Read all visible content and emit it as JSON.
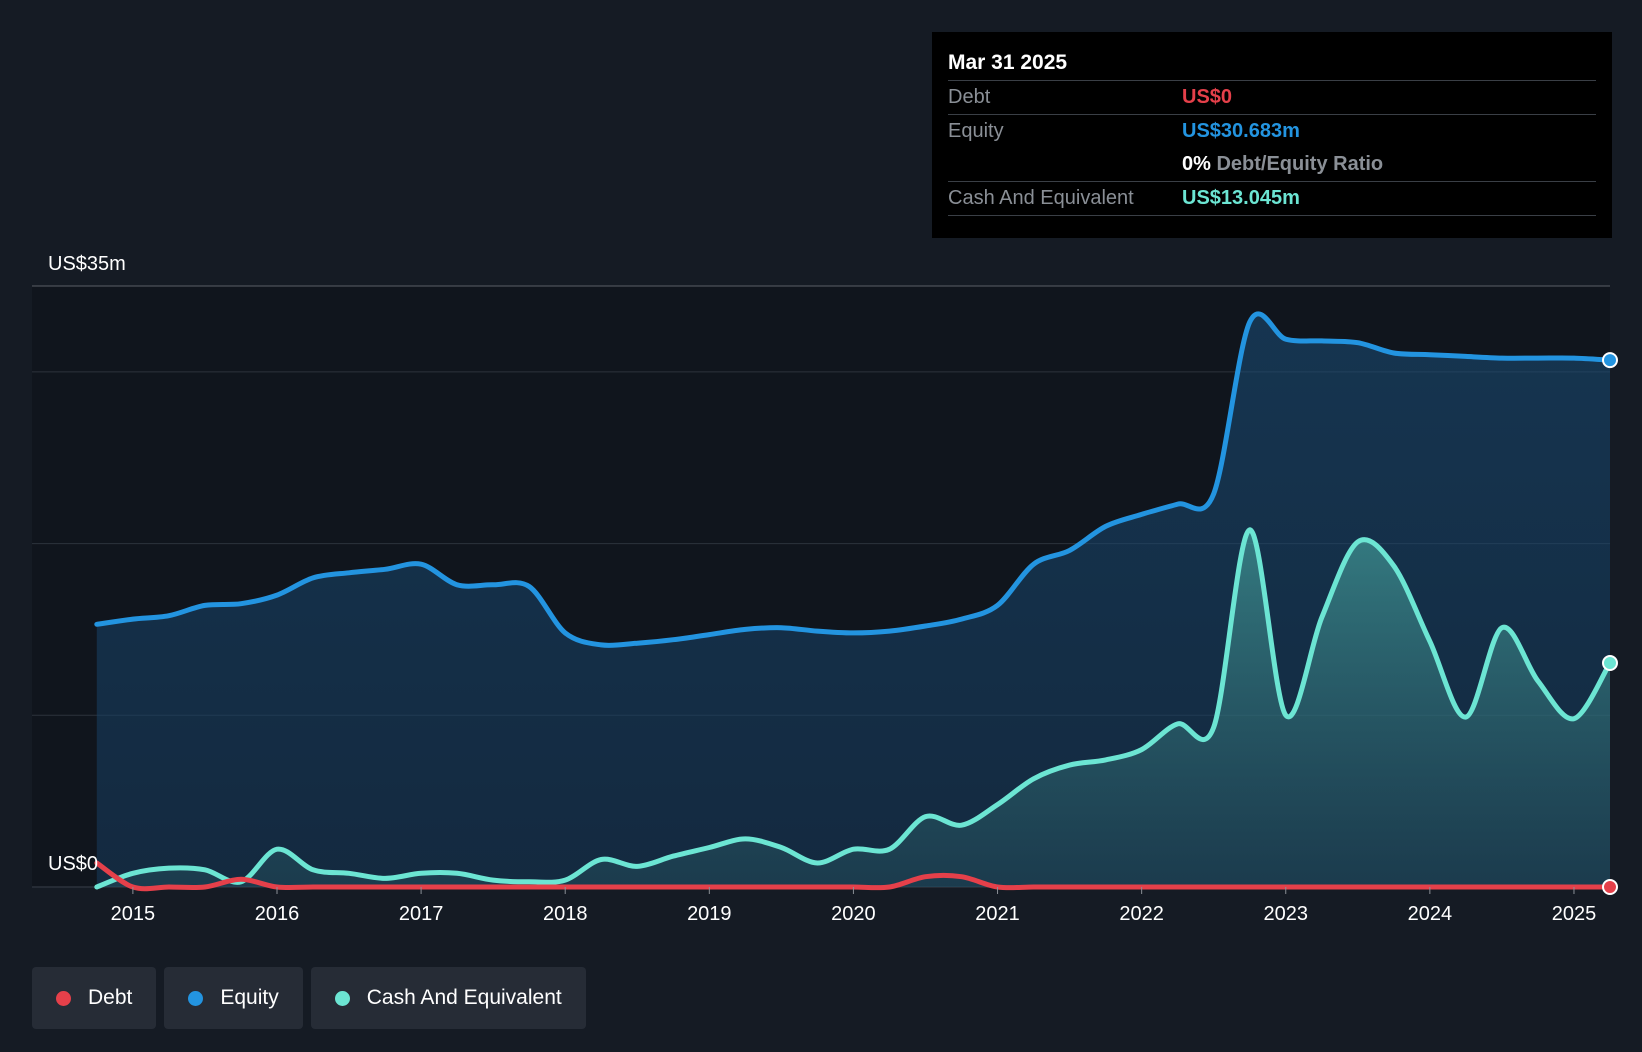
{
  "colors": {
    "debt": "#e5404a",
    "equity": "#2394e0",
    "cash": "#6ce5d3",
    "background": "#151b24",
    "plot_background": "#10151d"
  },
  "tooltip": {
    "date": "Mar 31 2025",
    "debt_label": "Debt",
    "debt_value": "US$0",
    "equity_label": "Equity",
    "equity_value": "US$30.683m",
    "ratio_value": "0%",
    "ratio_label": "Debt/Equity Ratio",
    "cash_label": "Cash And Equivalent",
    "cash_value": "US$13.045m"
  },
  "legend": {
    "debt": "Debt",
    "equity": "Equity",
    "cash": "Cash And Equivalent"
  },
  "chart_data": {
    "type": "area",
    "title": "",
    "xlabel": "",
    "ylabel": "",
    "ylim": [
      0,
      35
    ],
    "xlim": [
      2014.3,
      2025.25
    ],
    "y_top_label": "US$35m",
    "y_bottom_label": "US$0",
    "x_ticks": [
      2015,
      2016,
      2017,
      2018,
      2019,
      2020,
      2021,
      2022,
      2023,
      2024,
      2025
    ],
    "x_tick_labels": [
      "2015",
      "2016",
      "2017",
      "2018",
      "2019",
      "2020",
      "2021",
      "2022",
      "2023",
      "2024",
      "2025"
    ],
    "gridlines": [
      0,
      10,
      20,
      30,
      35
    ],
    "series": [
      {
        "name": "Equity",
        "key": "equity",
        "x": [
          2014.75,
          2015.0,
          2015.25,
          2015.5,
          2015.75,
          2016.0,
          2016.25,
          2016.5,
          2016.75,
          2017.0,
          2017.25,
          2017.5,
          2017.75,
          2018.0,
          2018.25,
          2018.5,
          2018.75,
          2019.0,
          2019.25,
          2019.5,
          2019.75,
          2020.0,
          2020.25,
          2020.5,
          2020.75,
          2021.0,
          2021.25,
          2021.5,
          2021.75,
          2022.0,
          2022.25,
          2022.5,
          2022.75,
          2023.0,
          2023.25,
          2023.5,
          2023.75,
          2024.0,
          2024.25,
          2024.5,
          2024.75,
          2025.0,
          2025.25
        ],
        "values": [
          15.3,
          15.6,
          15.8,
          16.4,
          16.5,
          17.0,
          18.0,
          18.3,
          18.5,
          18.8,
          17.6,
          17.6,
          17.5,
          14.8,
          14.1,
          14.2,
          14.4,
          14.7,
          15.0,
          15.1,
          14.9,
          14.8,
          14.9,
          15.2,
          15.6,
          16.4,
          18.8,
          19.6,
          21.0,
          21.7,
          22.3,
          22.9,
          32.9,
          31.9,
          31.8,
          31.7,
          31.1,
          31.0,
          30.9,
          30.8,
          30.8,
          30.8,
          30.683
        ]
      },
      {
        "name": "Cash And Equivalent",
        "key": "cash",
        "x": [
          2014.75,
          2015.0,
          2015.25,
          2015.5,
          2015.75,
          2016.0,
          2016.25,
          2016.5,
          2016.75,
          2017.0,
          2017.25,
          2017.5,
          2017.75,
          2018.0,
          2018.25,
          2018.5,
          2018.75,
          2019.0,
          2019.25,
          2019.5,
          2019.75,
          2020.0,
          2020.25,
          2020.5,
          2020.75,
          2021.0,
          2021.25,
          2021.5,
          2021.75,
          2022.0,
          2022.25,
          2022.5,
          2022.75,
          2023.0,
          2023.25,
          2023.5,
          2023.75,
          2024.0,
          2024.25,
          2024.5,
          2024.75,
          2025.0,
          2025.25
        ],
        "values": [
          0.0,
          0.8,
          1.1,
          1.0,
          0.3,
          2.2,
          1.0,
          0.8,
          0.5,
          0.8,
          0.8,
          0.4,
          0.3,
          0.4,
          1.6,
          1.2,
          1.8,
          2.3,
          2.8,
          2.3,
          1.4,
          2.2,
          2.2,
          4.1,
          3.6,
          4.8,
          6.3,
          7.1,
          7.4,
          8.0,
          9.5,
          9.3,
          20.8,
          10.0,
          15.7,
          20.1,
          18.7,
          14.3,
          9.9,
          15.1,
          12.0,
          9.8,
          13.045
        ]
      },
      {
        "name": "Debt",
        "key": "debt",
        "x": [
          2014.75,
          2015.0,
          2015.25,
          2015.5,
          2015.75,
          2016.0,
          2016.25,
          2016.5,
          2016.75,
          2017.0,
          2017.25,
          2017.5,
          2017.75,
          2018.0,
          2018.25,
          2018.5,
          2018.75,
          2019.0,
          2019.25,
          2019.5,
          2019.75,
          2020.0,
          2020.25,
          2020.5,
          2020.75,
          2021.0,
          2021.25,
          2021.5,
          2021.75,
          2022.0,
          2022.25,
          2022.5,
          2022.75,
          2023.0,
          2023.25,
          2023.5,
          2023.75,
          2024.0,
          2024.25,
          2024.5,
          2024.75,
          2025.0,
          2025.25
        ],
        "values": [
          1.4,
          0.0,
          0.0,
          0.0,
          0.45,
          0.0,
          0.0,
          0.0,
          0.0,
          0.0,
          0.0,
          0.0,
          0.0,
          0.0,
          0.0,
          0.0,
          0.0,
          0.0,
          0.0,
          0.0,
          0.0,
          0.0,
          0.0,
          0.6,
          0.6,
          0.0,
          0.0,
          0.0,
          0.0,
          0.0,
          0.0,
          0.0,
          0.0,
          0.0,
          0.0,
          0.0,
          0.0,
          0.0,
          0.0,
          0.0,
          0.0,
          0.0,
          0.0
        ]
      }
    ]
  }
}
